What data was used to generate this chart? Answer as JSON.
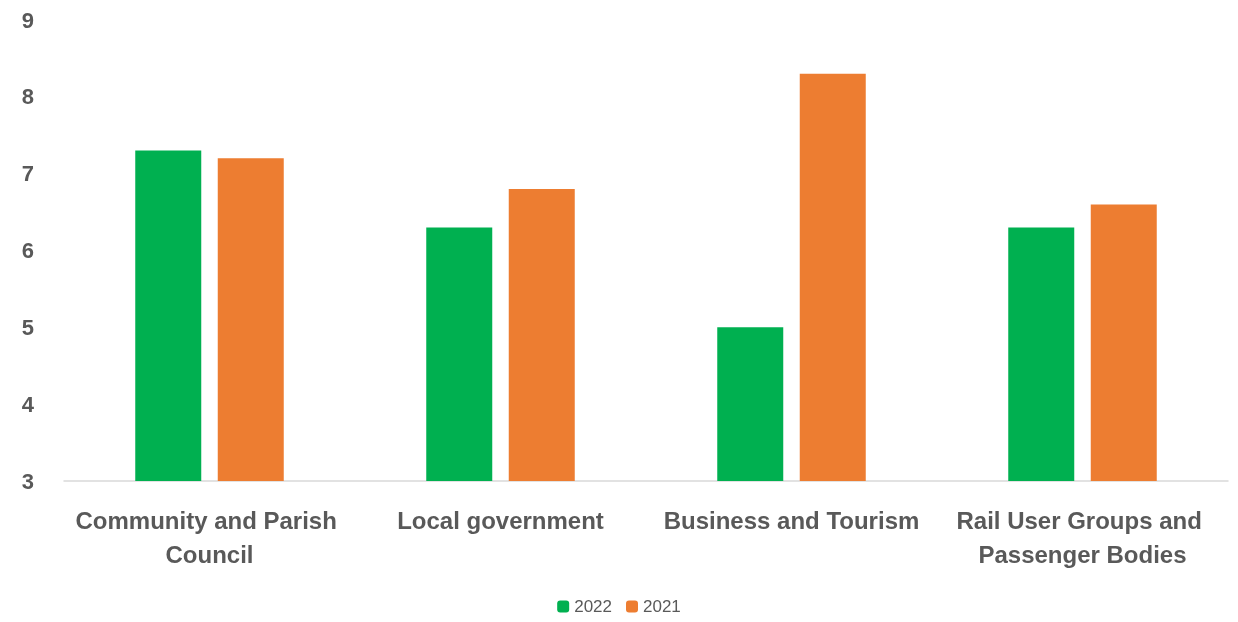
{
  "chart_data": {
    "type": "bar",
    "categories": [
      "Community and Parish Council",
      "Local government",
      "Business and Tourism",
      "Rail User Groups and Passenger Bodies"
    ],
    "series": [
      {
        "name": "2022",
        "color": "#00b050",
        "values": [
          7.3,
          6.3,
          5.0,
          6.3
        ]
      },
      {
        "name": "2021",
        "color": "#ed7d31",
        "values": [
          7.2,
          6.8,
          8.3,
          6.6
        ]
      }
    ],
    "ylim": [
      3,
      9
    ],
    "yticks": [
      3,
      4,
      5,
      6,
      7,
      8,
      9
    ],
    "grid": false,
    "legend": "bottom"
  }
}
